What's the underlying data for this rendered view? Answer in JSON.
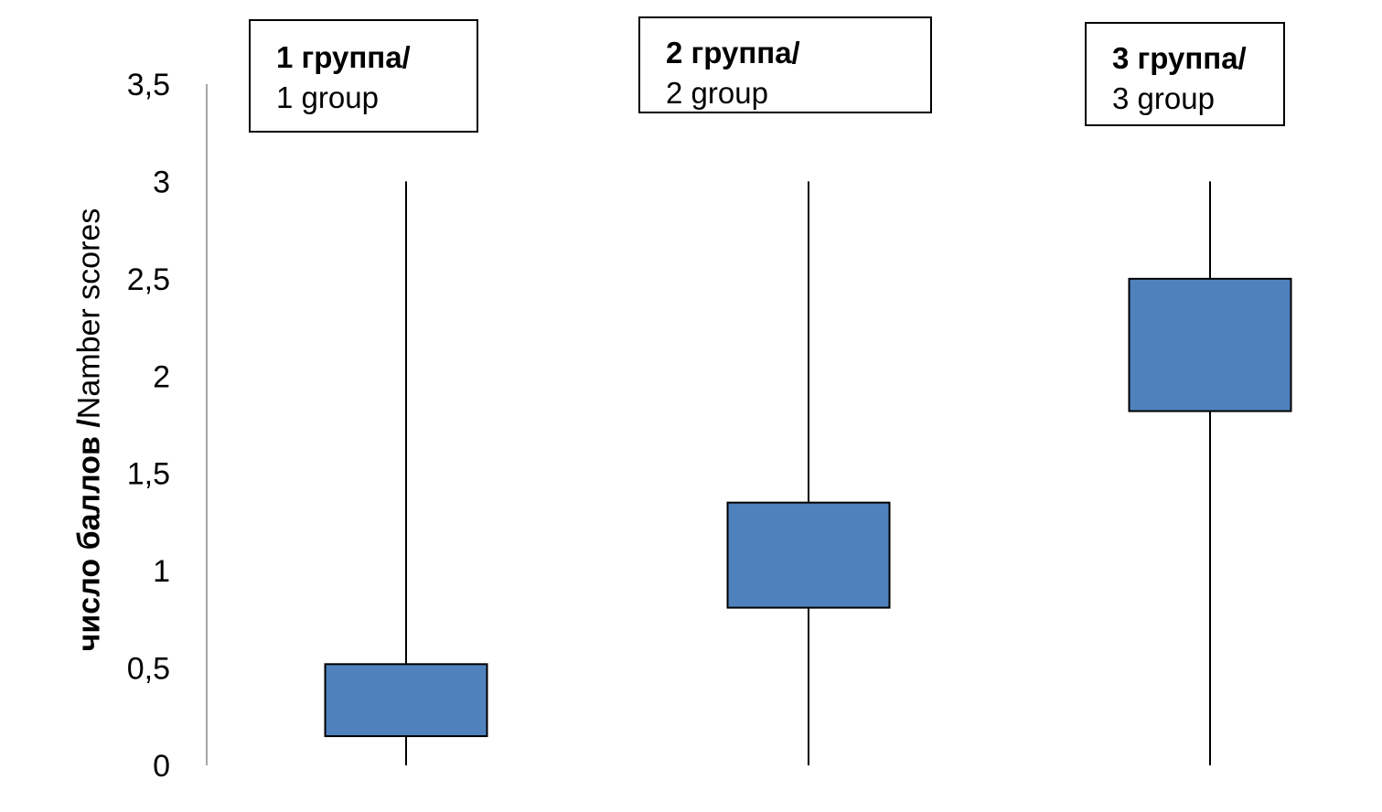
{
  "chart_data": {
    "type": "box",
    "ylabel_bold": "число баллов /",
    "ylabel_rest": "Namber scores",
    "ylim": [
      0,
      3.5
    ],
    "y_ticks": [
      "0",
      "0,5",
      "1",
      "1,5",
      "2",
      "2,5",
      "3",
      "3,5"
    ],
    "y_tick_values": [
      0,
      0.5,
      1,
      1.5,
      2,
      2.5,
      3,
      3.5
    ],
    "box_color": "#4f81bd",
    "groups": [
      {
        "label_bold": "1 группа/",
        "label_plain": "1 group",
        "whisker_low": 0,
        "q1": 0.15,
        "q3": 0.52,
        "whisker_high": 3
      },
      {
        "label_bold": "2 группа/",
        "label_plain": "2 group",
        "whisker_low": 0,
        "q1": 0.81,
        "q3": 1.35,
        "whisker_high": 3
      },
      {
        "label_bold": "3 группа/",
        "label_plain": "3 group",
        "whisker_low": 0,
        "q1": 1.82,
        "q3": 2.5,
        "whisker_high": 3
      }
    ]
  }
}
